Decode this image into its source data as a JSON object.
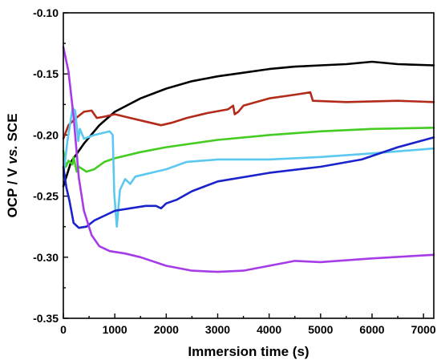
{
  "chart_data": {
    "type": "line",
    "xlabel": "Immersion time (s)",
    "ylabel": {
      "prefix": "OCP / V ",
      "italic": "vs.",
      "suffix": " SCE"
    },
    "xlim": [
      0,
      7200
    ],
    "ylim": [
      -0.35,
      -0.1
    ],
    "x_ticks": [
      0,
      1000,
      2000,
      3000,
      4000,
      5000,
      6000,
      7000
    ],
    "y_ticks": [
      -0.1,
      -0.15,
      -0.2,
      -0.25,
      -0.3,
      -0.35
    ],
    "x_tick_labels": [
      "0",
      "1000",
      "2000",
      "3000",
      "4000",
      "5000",
      "6000",
      "7000"
    ],
    "y_tick_labels": [
      "-0.10",
      "-0.15",
      "-0.20",
      "-0.25",
      "-0.30",
      "-0.35"
    ],
    "grid": false,
    "legend": "none",
    "series": [
      {
        "color": "#000000",
        "points": [
          [
            0,
            -0.242
          ],
          [
            150,
            -0.222
          ],
          [
            400,
            -0.207
          ],
          [
            700,
            -0.192
          ],
          [
            1000,
            -0.181
          ],
          [
            1500,
            -0.17
          ],
          [
            2000,
            -0.162
          ],
          [
            2500,
            -0.156
          ],
          [
            3000,
            -0.152
          ],
          [
            3500,
            -0.149
          ],
          [
            4000,
            -0.146
          ],
          [
            4500,
            -0.144
          ],
          [
            5000,
            -0.143
          ],
          [
            5500,
            -0.142
          ],
          [
            6000,
            -0.14
          ],
          [
            6500,
            -0.142
          ],
          [
            7200,
            -0.143
          ]
        ]
      },
      {
        "color": "#b22a1a",
        "points": [
          [
            0,
            -0.203
          ],
          [
            100,
            -0.192
          ],
          [
            250,
            -0.186
          ],
          [
            400,
            -0.181
          ],
          [
            550,
            -0.18
          ],
          [
            650,
            -0.186
          ],
          [
            800,
            -0.185
          ],
          [
            1000,
            -0.183
          ],
          [
            1300,
            -0.186
          ],
          [
            1700,
            -0.19
          ],
          [
            1900,
            -0.192
          ],
          [
            2100,
            -0.19
          ],
          [
            2400,
            -0.186
          ],
          [
            2800,
            -0.182
          ],
          [
            3200,
            -0.179
          ],
          [
            3300,
            -0.176
          ],
          [
            3330,
            -0.183
          ],
          [
            3400,
            -0.181
          ],
          [
            3500,
            -0.176
          ],
          [
            4000,
            -0.17
          ],
          [
            4500,
            -0.167
          ],
          [
            4800,
            -0.165
          ],
          [
            4850,
            -0.172
          ],
          [
            5500,
            -0.173
          ],
          [
            6500,
            -0.172
          ],
          [
            7200,
            -0.173
          ]
        ]
      },
      {
        "color": "#44cc22",
        "points": [
          [
            0,
            -0.213
          ],
          [
            50,
            -0.226
          ],
          [
            100,
            -0.221
          ],
          [
            180,
            -0.224
          ],
          [
            200,
            -0.218
          ],
          [
            260,
            -0.23
          ],
          [
            300,
            -0.226
          ],
          [
            450,
            -0.23
          ],
          [
            600,
            -0.228
          ],
          [
            800,
            -0.222
          ],
          [
            1000,
            -0.219
          ],
          [
            1500,
            -0.214
          ],
          [
            2000,
            -0.21
          ],
          [
            3000,
            -0.204
          ],
          [
            4000,
            -0.2
          ],
          [
            5000,
            -0.197
          ],
          [
            6000,
            -0.195
          ],
          [
            7200,
            -0.194
          ]
        ]
      },
      {
        "color": "#5bc8f0",
        "points": [
          [
            0,
            -0.233
          ],
          [
            80,
            -0.205
          ],
          [
            180,
            -0.178
          ],
          [
            230,
            -0.18
          ],
          [
            290,
            -0.205
          ],
          [
            320,
            -0.195
          ],
          [
            400,
            -0.203
          ],
          [
            600,
            -0.2
          ],
          [
            800,
            -0.198
          ],
          [
            900,
            -0.197
          ],
          [
            960,
            -0.2
          ],
          [
            990,
            -0.248
          ],
          [
            1040,
            -0.275
          ],
          [
            1100,
            -0.245
          ],
          [
            1200,
            -0.236
          ],
          [
            1300,
            -0.24
          ],
          [
            1400,
            -0.234
          ],
          [
            1600,
            -0.232
          ],
          [
            1800,
            -0.23
          ],
          [
            2000,
            -0.228
          ],
          [
            2400,
            -0.222
          ],
          [
            3000,
            -0.22
          ],
          [
            4000,
            -0.22
          ],
          [
            5000,
            -0.218
          ],
          [
            6000,
            -0.215
          ],
          [
            7200,
            -0.211
          ]
        ]
      },
      {
        "color": "#1a22cc",
        "points": [
          [
            0,
            -0.226
          ],
          [
            60,
            -0.243
          ],
          [
            120,
            -0.254
          ],
          [
            200,
            -0.272
          ],
          [
            300,
            -0.276
          ],
          [
            450,
            -0.275
          ],
          [
            600,
            -0.27
          ],
          [
            800,
            -0.266
          ],
          [
            1000,
            -0.262
          ],
          [
            1300,
            -0.26
          ],
          [
            1600,
            -0.258
          ],
          [
            1800,
            -0.258
          ],
          [
            1900,
            -0.26
          ],
          [
            2000,
            -0.256
          ],
          [
            2200,
            -0.253
          ],
          [
            2500,
            -0.246
          ],
          [
            3000,
            -0.238
          ],
          [
            4000,
            -0.231
          ],
          [
            5000,
            -0.226
          ],
          [
            5800,
            -0.22
          ],
          [
            6500,
            -0.21
          ],
          [
            7200,
            -0.202
          ]
        ]
      },
      {
        "color": "#a63be8",
        "points": [
          [
            0,
            -0.128
          ],
          [
            100,
            -0.148
          ],
          [
            200,
            -0.185
          ],
          [
            300,
            -0.235
          ],
          [
            400,
            -0.262
          ],
          [
            550,
            -0.282
          ],
          [
            700,
            -0.291
          ],
          [
            900,
            -0.295
          ],
          [
            1200,
            -0.297
          ],
          [
            1500,
            -0.3
          ],
          [
            2000,
            -0.307
          ],
          [
            2500,
            -0.311
          ],
          [
            3000,
            -0.312
          ],
          [
            3500,
            -0.311
          ],
          [
            4000,
            -0.307
          ],
          [
            4500,
            -0.303
          ],
          [
            5000,
            -0.304
          ],
          [
            6000,
            -0.301
          ],
          [
            7200,
            -0.298
          ]
        ]
      }
    ]
  }
}
